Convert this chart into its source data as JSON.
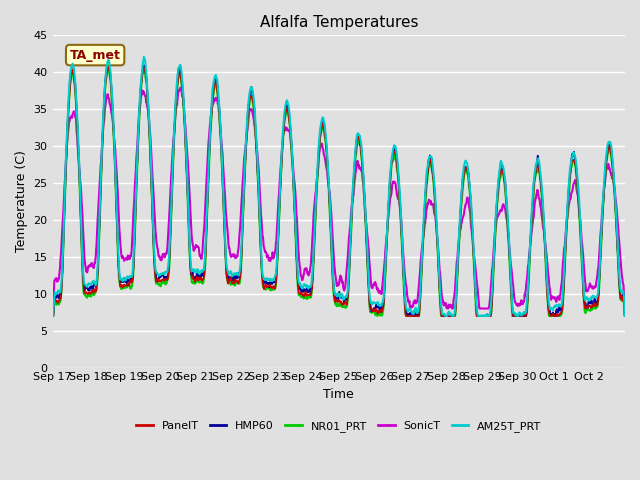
{
  "title": "Alfalfa Temperatures",
  "ylabel": "Temperature (C)",
  "xlabel": "Time",
  "annotation": "TA_met",
  "annotation_color": "#8B0000",
  "annotation_bg": "#FFFFCC",
  "annotation_edge": "#8B6914",
  "ylim": [
    0,
    45
  ],
  "yticks": [
    0,
    5,
    10,
    15,
    20,
    25,
    30,
    35,
    40,
    45
  ],
  "bg_color": "#E0E0E0",
  "grid_color": "white",
  "series": {
    "PanelT": {
      "color": "#CC0000",
      "lw": 1.2,
      "zorder": 3
    },
    "HMP60": {
      "color": "#000099",
      "lw": 1.2,
      "zorder": 3
    },
    "NR01_PRT": {
      "color": "#00CC00",
      "lw": 1.5,
      "zorder": 3
    },
    "SonicT": {
      "color": "#CC00CC",
      "lw": 1.5,
      "zorder": 3
    },
    "AM25T_PRT": {
      "color": "#00CCCC",
      "lw": 1.5,
      "zorder": 4
    }
  },
  "xtick_labels": [
    "Sep 17",
    "Sep 18",
    "Sep 19",
    "Sep 20",
    "Sep 21",
    "Sep 22",
    "Sep 23",
    "Sep 24",
    "Sep 25",
    "Sep 26",
    "Sep 27",
    "Sep 28",
    "Sep 29",
    "Sep 30",
    "Oct 1",
    "Oct 2"
  ],
  "legend_labels": [
    "PanelT",
    "HMP60",
    "NR01_PRT",
    "SonicT",
    "AM25T_PRT"
  ],
  "legend_colors": [
    "#CC0000",
    "#000099",
    "#00CC00",
    "#CC00CC",
    "#00CCCC"
  ]
}
